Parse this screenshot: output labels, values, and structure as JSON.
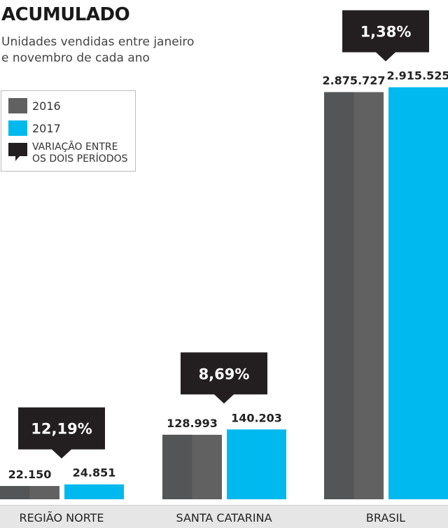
{
  "title": "ACUMULADO",
  "subtitle": [
    "Unidades vendidas entre janeiro",
    "e novembro de cada ano"
  ],
  "colors": {
    "y2016": "#616161",
    "y2016_dark": "#545556",
    "y2017": "#00b9ee",
    "callout": "#231f20",
    "axis_band": "#e6e6e6"
  },
  "legend": {
    "items": [
      {
        "label": "2016",
        "icon": "gray-square"
      },
      {
        "label": "2017",
        "icon": "cyan-square"
      }
    ],
    "callout_label_1": "VARIAÇÃO ENTRE",
    "callout_label_2": "OS DOIS PERÍODOS",
    "callout_icon": "speech-bubble-icon"
  },
  "chart_data": {
    "type": "bar",
    "categories": [
      "REGIÃO NORTE",
      "SANTA CATARINA",
      "BRASIL"
    ],
    "series": [
      {
        "name": "2016",
        "values": [
          22150,
          128993,
          2875727
        ],
        "labels": [
          "22.150",
          "128.993",
          "2.875.727"
        ]
      },
      {
        "name": "2017",
        "values": [
          24851,
          140203,
          2915525
        ],
        "labels": [
          "24.851",
          "140.203",
          "2.915.525"
        ]
      }
    ],
    "variation": [
      "12,19%",
      "8,69%",
      "1,38%"
    ],
    "note": "bars drawn on a broken (non-linear) scale as in the original"
  }
}
